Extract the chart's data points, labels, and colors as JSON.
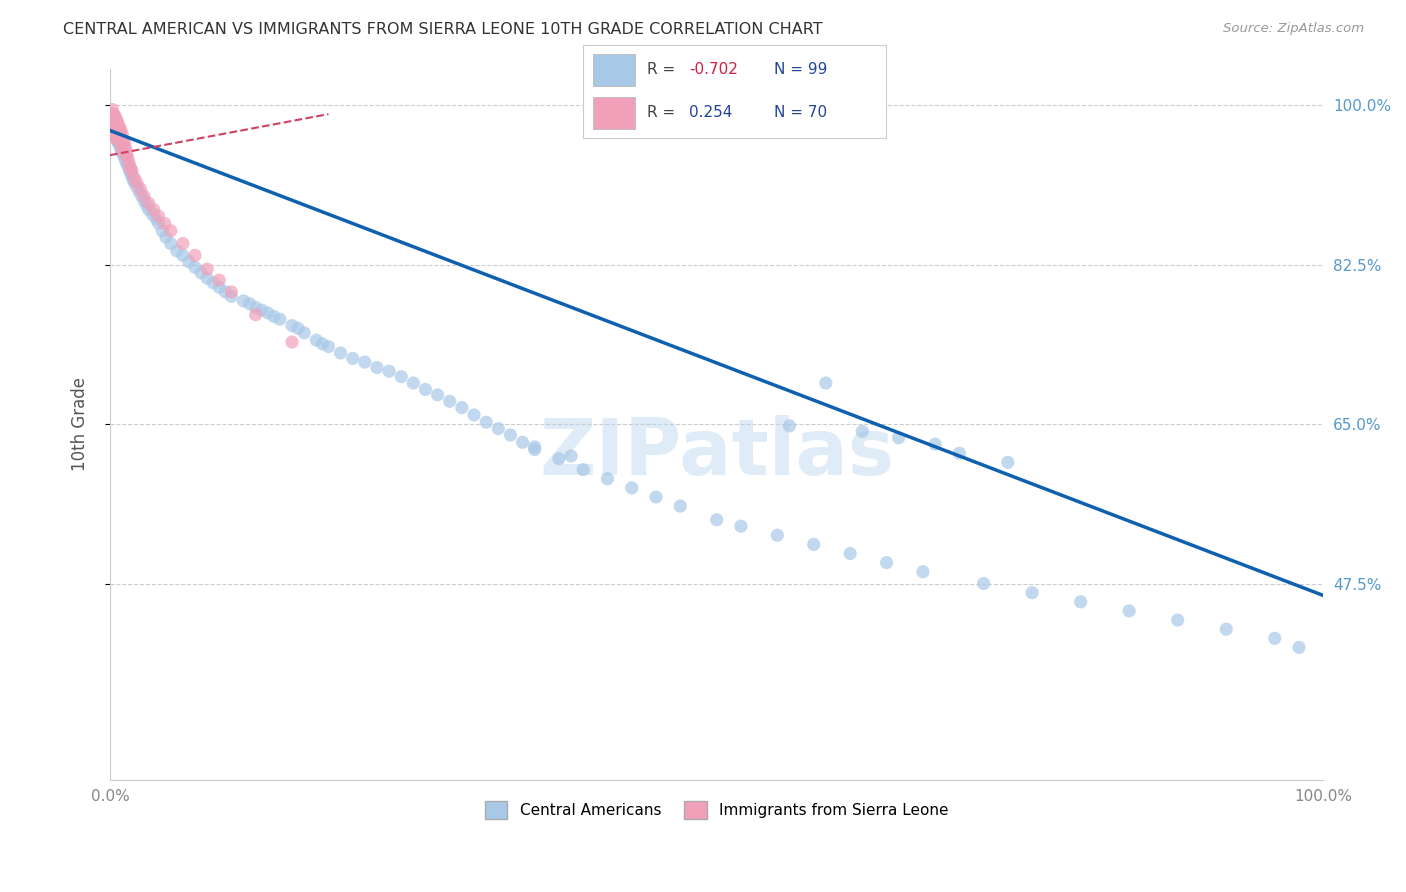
{
  "title": "CENTRAL AMERICAN VS IMMIGRANTS FROM SIERRA LEONE 10TH GRADE CORRELATION CHART",
  "source_text": "Source: ZipAtlas.com",
  "ylabel": "10th Grade",
  "watermark": "ZIPatlas",
  "blue_color": "#a8c8e8",
  "pink_color": "#f0a0b8",
  "blue_line_color": "#1060b0",
  "pink_line_color": "#d04060",
  "background_color": "#ffffff",
  "grid_color": "#cccccc",
  "legend_box_color": "#ffffff",
  "right_tick_color": "#5599cc",
  "title_color": "#333333",
  "source_color": "#999999",
  "ylabel_color": "#555555",
  "xlim": [
    0.0,
    1.0
  ],
  "ylim": [
    0.26,
    1.04
  ],
  "y_ticks": [
    1.0,
    0.825,
    0.65,
    0.475
  ],
  "y_tick_labels": [
    "100.0%",
    "82.5%",
    "65.0%",
    "47.5%"
  ],
  "x_ticks": [
    0.0,
    1.0
  ],
  "x_tick_labels": [
    "0.0%",
    "100.0%"
  ],
  "blue_line_x": [
    0.0,
    1.0
  ],
  "blue_line_y": [
    0.972,
    0.462
  ],
  "pink_line_x": [
    0.0,
    0.18
  ],
  "pink_line_y": [
    0.945,
    0.99
  ],
  "blue_scatter_x": [
    0.004,
    0.005,
    0.006,
    0.007,
    0.008,
    0.009,
    0.01,
    0.011,
    0.012,
    0.013,
    0.014,
    0.015,
    0.016,
    0.017,
    0.018,
    0.019,
    0.02,
    0.022,
    0.024,
    0.026,
    0.028,
    0.03,
    0.032,
    0.035,
    0.038,
    0.04,
    0.043,
    0.046,
    0.05,
    0.055,
    0.06,
    0.065,
    0.07,
    0.075,
    0.08,
    0.085,
    0.09,
    0.095,
    0.1,
    0.11,
    0.115,
    0.12,
    0.125,
    0.13,
    0.135,
    0.14,
    0.15,
    0.155,
    0.16,
    0.17,
    0.175,
    0.18,
    0.19,
    0.2,
    0.21,
    0.22,
    0.23,
    0.24,
    0.25,
    0.26,
    0.27,
    0.28,
    0.29,
    0.3,
    0.31,
    0.32,
    0.33,
    0.34,
    0.35,
    0.37,
    0.39,
    0.41,
    0.43,
    0.45,
    0.47,
    0.5,
    0.52,
    0.55,
    0.58,
    0.61,
    0.64,
    0.67,
    0.72,
    0.76,
    0.8,
    0.84,
    0.88,
    0.92,
    0.96,
    0.35,
    0.38,
    0.56,
    0.59,
    0.62,
    0.65,
    0.68,
    0.7,
    0.74,
    0.98
  ],
  "blue_scatter_y": [
    0.97,
    0.965,
    0.96,
    0.958,
    0.955,
    0.95,
    0.948,
    0.945,
    0.942,
    0.938,
    0.935,
    0.932,
    0.928,
    0.925,
    0.922,
    0.918,
    0.915,
    0.91,
    0.905,
    0.9,
    0.895,
    0.89,
    0.885,
    0.88,
    0.875,
    0.87,
    0.862,
    0.855,
    0.848,
    0.84,
    0.835,
    0.828,
    0.822,
    0.816,
    0.81,
    0.805,
    0.8,
    0.795,
    0.79,
    0.785,
    0.782,
    0.778,
    0.775,
    0.772,
    0.768,
    0.765,
    0.758,
    0.755,
    0.75,
    0.742,
    0.738,
    0.735,
    0.728,
    0.722,
    0.718,
    0.712,
    0.708,
    0.702,
    0.695,
    0.688,
    0.682,
    0.675,
    0.668,
    0.66,
    0.652,
    0.645,
    0.638,
    0.63,
    0.622,
    0.612,
    0.6,
    0.59,
    0.58,
    0.57,
    0.56,
    0.545,
    0.538,
    0.528,
    0.518,
    0.508,
    0.498,
    0.488,
    0.475,
    0.465,
    0.455,
    0.445,
    0.435,
    0.425,
    0.415,
    0.625,
    0.615,
    0.648,
    0.695,
    0.642,
    0.635,
    0.628,
    0.618,
    0.608,
    0.405
  ],
  "pink_scatter_x": [
    0.001,
    0.001,
    0.001,
    0.001,
    0.001,
    0.002,
    0.002,
    0.002,
    0.002,
    0.002,
    0.002,
    0.002,
    0.003,
    0.003,
    0.003,
    0.003,
    0.003,
    0.003,
    0.004,
    0.004,
    0.004,
    0.004,
    0.004,
    0.005,
    0.005,
    0.005,
    0.005,
    0.006,
    0.006,
    0.006,
    0.006,
    0.007,
    0.007,
    0.007,
    0.008,
    0.008,
    0.008,
    0.009,
    0.009,
    0.009,
    0.01,
    0.01,
    0.01,
    0.011,
    0.011,
    0.012,
    0.012,
    0.013,
    0.013,
    0.014,
    0.015,
    0.016,
    0.017,
    0.018,
    0.02,
    0.022,
    0.025,
    0.028,
    0.032,
    0.036,
    0.04,
    0.045,
    0.05,
    0.06,
    0.07,
    0.08,
    0.09,
    0.1,
    0.12,
    0.15
  ],
  "pink_scatter_y": [
    0.99,
    0.985,
    0.98,
    0.975,
    0.97,
    0.995,
    0.99,
    0.985,
    0.98,
    0.975,
    0.97,
    0.965,
    0.99,
    0.985,
    0.98,
    0.975,
    0.97,
    0.965,
    0.988,
    0.982,
    0.978,
    0.972,
    0.968,
    0.985,
    0.98,
    0.975,
    0.968,
    0.982,
    0.975,
    0.97,
    0.965,
    0.978,
    0.972,
    0.965,
    0.975,
    0.968,
    0.96,
    0.972,
    0.965,
    0.958,
    0.968,
    0.96,
    0.952,
    0.962,
    0.955,
    0.958,
    0.95,
    0.952,
    0.945,
    0.945,
    0.94,
    0.935,
    0.93,
    0.928,
    0.92,
    0.915,
    0.908,
    0.9,
    0.892,
    0.885,
    0.878,
    0.87,
    0.862,
    0.848,
    0.835,
    0.82,
    0.808,
    0.795,
    0.77,
    0.74
  ]
}
